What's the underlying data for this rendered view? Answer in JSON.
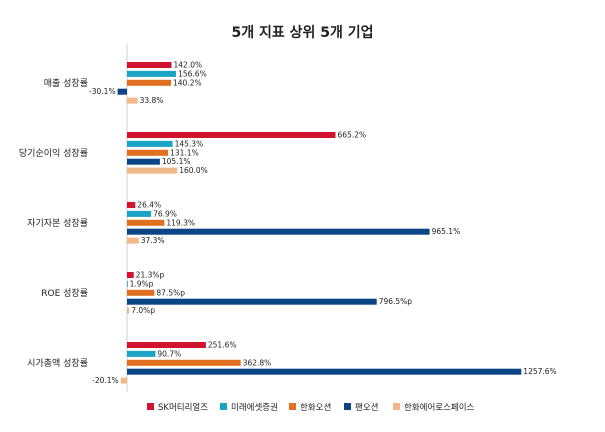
{
  "chart_data": {
    "type": "bar",
    "orientation": "horizontal",
    "title": "5개 지표 상위 5개 기업",
    "categories": [
      "매출 성장률",
      "당기순이익 성장률",
      "자기자본 성장률",
      "ROE 성장률",
      "시가총액 성장률"
    ],
    "series": [
      {
        "name": "SK머티리얼즈",
        "color": "#d0132f",
        "values": [
          142.0,
          665.2,
          26.4,
          21.3,
          251.6
        ],
        "labels": [
          "142.0%",
          "665.2%",
          "26.4%",
          "21.3%p",
          "251.6%"
        ]
      },
      {
        "name": "미래에셋증권",
        "color": "#1aa3c4",
        "values": [
          156.6,
          145.3,
          76.9,
          1.9,
          90.7
        ],
        "labels": [
          "156.6%",
          "145.3%",
          "76.9%",
          "1.9%p",
          "90.7%"
        ]
      },
      {
        "name": "한화오션",
        "color": "#e07020",
        "values": [
          140.2,
          131.1,
          119.3,
          87.5,
          362.8
        ],
        "labels": [
          "140.2%",
          "131.1%",
          "119.3%",
          "87.5%p",
          "362.8%"
        ]
      },
      {
        "name": "팬오션",
        "color": "#0c4585",
        "values": [
          -30.1,
          105.1,
          965.1,
          796.5,
          1257.6
        ],
        "labels": [
          "-30.1%",
          "105.1%",
          "965.1%",
          "796.5%p",
          "1257.6%"
        ]
      },
      {
        "name": "한화에어로스페이스",
        "color": "#f0b888",
        "values": [
          33.8,
          160.0,
          37.3,
          7.0,
          -20.1
        ],
        "labels": [
          "33.8%",
          "160.0%",
          "37.3%",
          "7.0%p",
          "-20.1%"
        ]
      }
    ],
    "legend": "bottom",
    "grid": false
  }
}
